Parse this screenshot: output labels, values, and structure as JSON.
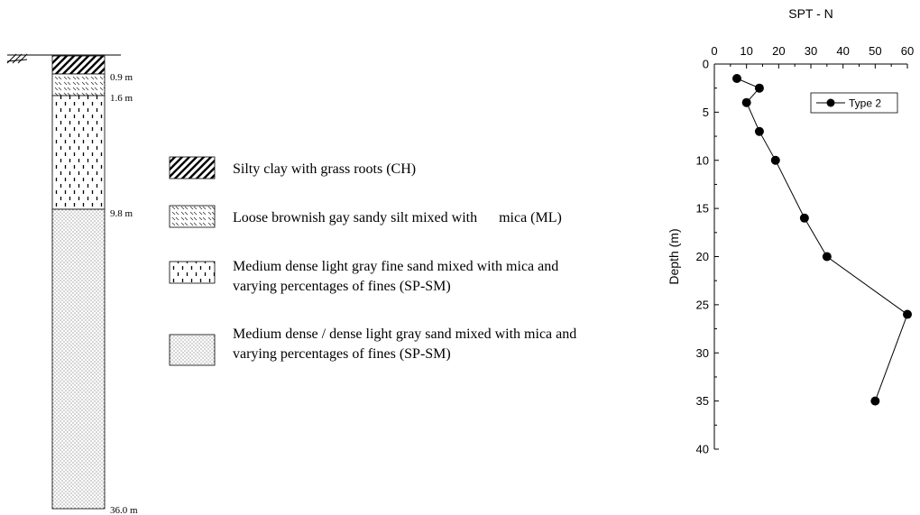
{
  "borehole": {
    "depth_labels": [
      "0.9 m",
      "1.6 m",
      "9.8 m",
      "36.0 m"
    ]
  },
  "legend": [
    {
      "lines": [
        "Silty clay with grass roots (CH)"
      ]
    },
    {
      "lines": [
        "Loose brownish gay sandy silt mixed with      mica (ML)"
      ]
    },
    {
      "lines": [
        "Medium dense light gray fine sand mixed with mica and",
        "varying percentages of fines (SP-SM)"
      ]
    },
    {
      "lines": [
        "Medium dense / dense light gray sand mixed with mica and",
        "varying percentages of fines (SP-SM)"
      ]
    }
  ],
  "chart_data": {
    "type": "line",
    "title": "SPT - N",
    "xlabel": "",
    "ylabel": "Depth (m)",
    "xlim": [
      0,
      60
    ],
    "ylim": [
      0,
      40
    ],
    "y_inverted": true,
    "x_axis_position": "top",
    "x_ticks": [
      0,
      10,
      20,
      30,
      40,
      50,
      60
    ],
    "y_ticks": [
      0,
      5,
      10,
      15,
      20,
      25,
      30,
      35,
      40
    ],
    "grid": false,
    "legend_position": "top-right",
    "series": [
      {
        "name": "Type 2",
        "marker": "filled-circle",
        "color": "#000000",
        "points": [
          {
            "x": 7,
            "y": 1.5
          },
          {
            "x": 14,
            "y": 2.5
          },
          {
            "x": 10,
            "y": 4
          },
          {
            "x": 14,
            "y": 7
          },
          {
            "x": 19,
            "y": 10
          },
          {
            "x": 28,
            "y": 16
          },
          {
            "x": 35,
            "y": 20
          },
          {
            "x": 60,
            "y": 26
          },
          {
            "x": 50,
            "y": 35
          }
        ]
      }
    ]
  }
}
